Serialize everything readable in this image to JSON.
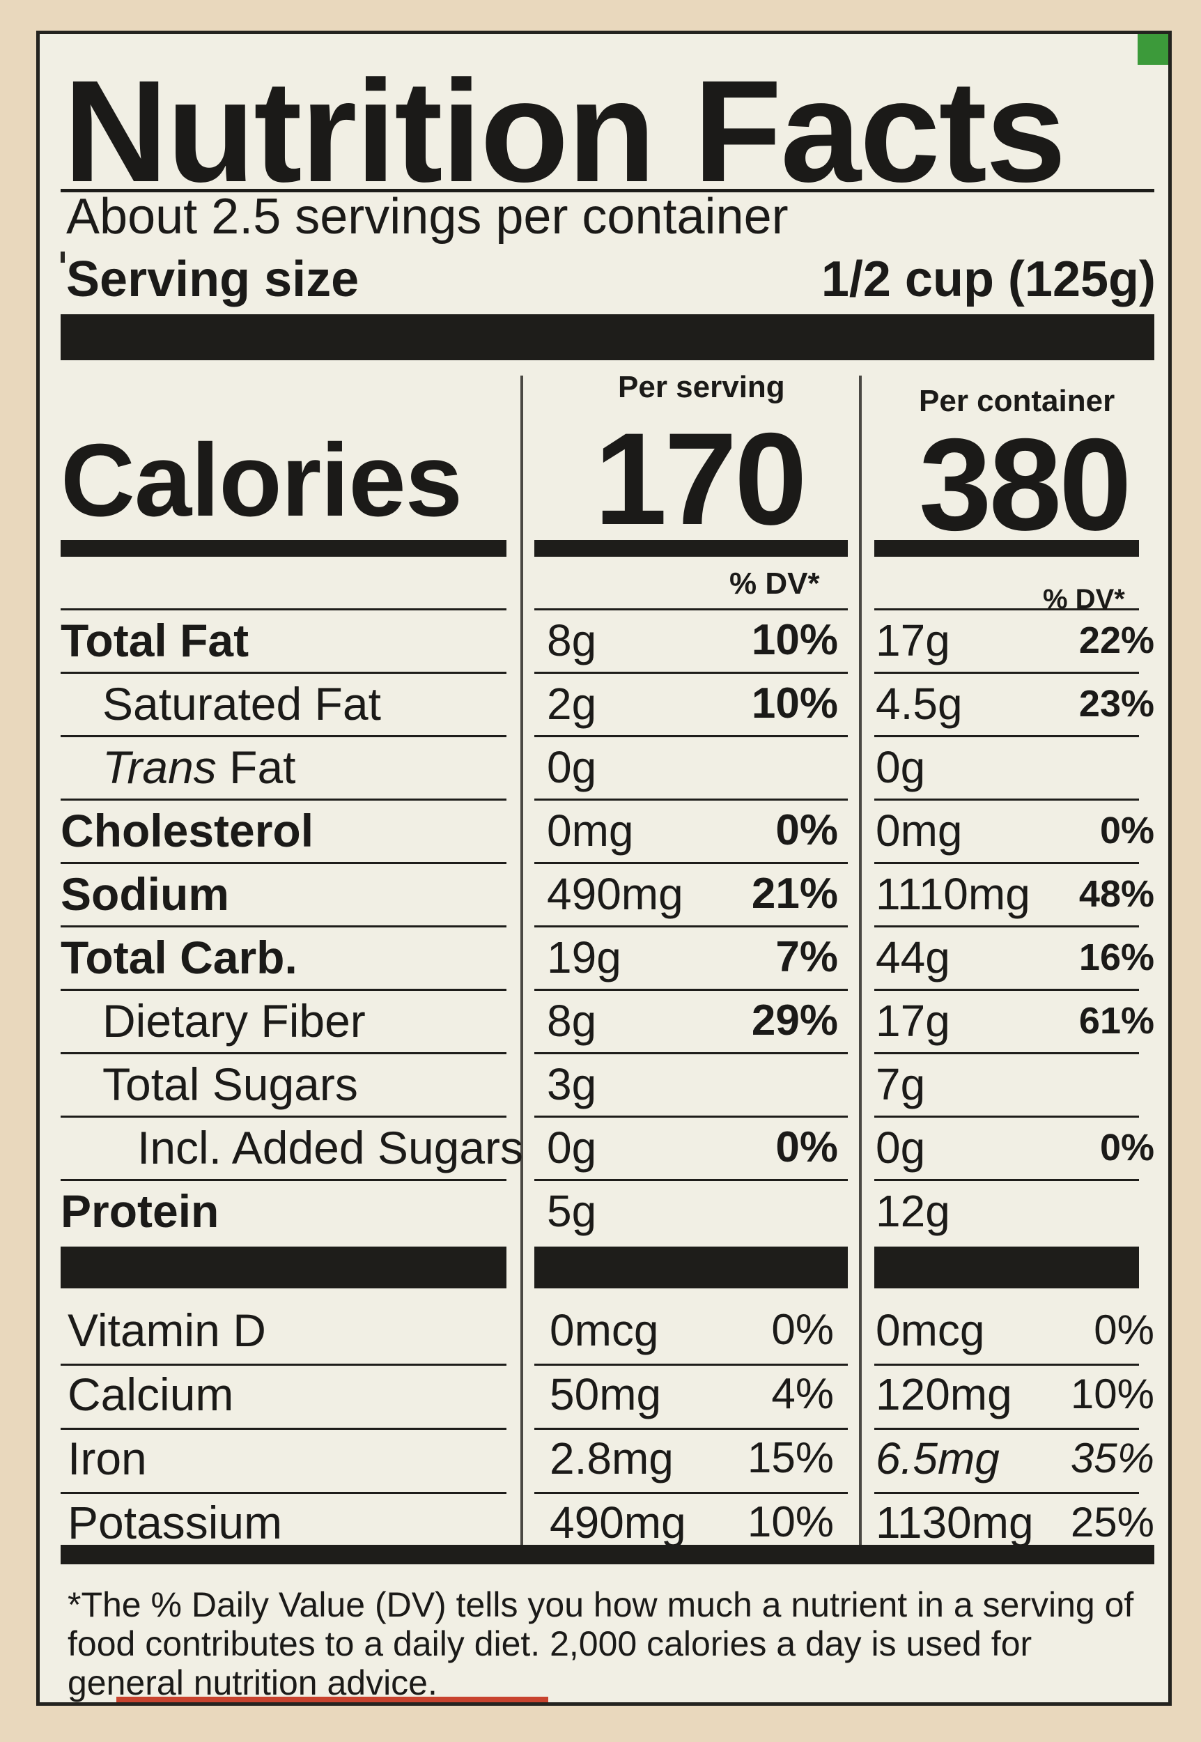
{
  "title": "Nutrition Facts",
  "servings_per_container": "About 2.5 servings per container",
  "serving_size": {
    "label": "Serving size",
    "value": "1/2 cup (125g)"
  },
  "columns": {
    "per_serving": "Per serving",
    "per_container": "Per container"
  },
  "calories": {
    "label": "Calories",
    "per_serving": "170",
    "per_container": "380"
  },
  "dv_header": "% DV*",
  "nutrients": [
    {
      "name": "Total Fat",
      "serv_amt": "8g",
      "serv_dv": "10%",
      "cont_amt": "17g",
      "cont_dv": "22%"
    },
    {
      "name": "Saturated Fat",
      "serv_amt": "2g",
      "serv_dv": "10%",
      "cont_amt": "4.5g",
      "cont_dv": "23%"
    },
    {
      "name_italic": "Trans",
      "name": "Fat",
      "serv_amt": "0g",
      "serv_dv": "",
      "cont_amt": "0g",
      "cont_dv": ""
    },
    {
      "name": "Cholesterol",
      "serv_amt": "0mg",
      "serv_dv": "0%",
      "cont_amt": "0mg",
      "cont_dv": "0%"
    },
    {
      "name": "Sodium",
      "serv_amt": "490mg",
      "serv_dv": "21%",
      "cont_amt": "1110mg",
      "cont_dv": "48%"
    },
    {
      "name": "Total Carb.",
      "serv_amt": "19g",
      "serv_dv": "7%",
      "cont_amt": "44g",
      "cont_dv": "16%"
    },
    {
      "name": "Dietary Fiber",
      "serv_amt": "8g",
      "serv_dv": "29%",
      "cont_amt": "17g",
      "cont_dv": "61%"
    },
    {
      "name": "Total Sugars",
      "serv_amt": "3g",
      "serv_dv": "",
      "cont_amt": "7g",
      "cont_dv": ""
    },
    {
      "name": "Incl. Added Sugars",
      "serv_amt": "0g",
      "serv_dv": "0%",
      "cont_amt": "0g",
      "cont_dv": "0%"
    },
    {
      "name": "Protein",
      "serv_amt": "5g",
      "serv_dv": "",
      "cont_amt": "12g",
      "cont_dv": ""
    }
  ],
  "vitamins": [
    {
      "name": "Vitamin D",
      "serv_amt": "0mcg",
      "serv_dv": "0%",
      "cont_amt": "0mcg",
      "cont_dv": "0%"
    },
    {
      "name": "Calcium",
      "serv_amt": "50mg",
      "serv_dv": "4%",
      "cont_amt": "120mg",
      "cont_dv": "10%"
    },
    {
      "name": "Iron",
      "serv_amt": "2.8mg",
      "serv_dv": "15%",
      "cont_amt": "6.5mg",
      "cont_dv": "35%"
    },
    {
      "name": "Potassium",
      "serv_amt": "490mg",
      "serv_dv": "10%",
      "cont_amt": "1130mg",
      "cont_dv": "25%"
    }
  ],
  "footnote": "*The % Daily Value (DV) tells you how much a nutrient in a serving of food contributes to a daily diet. 2,000 calories a day is used for general nutrition advice."
}
